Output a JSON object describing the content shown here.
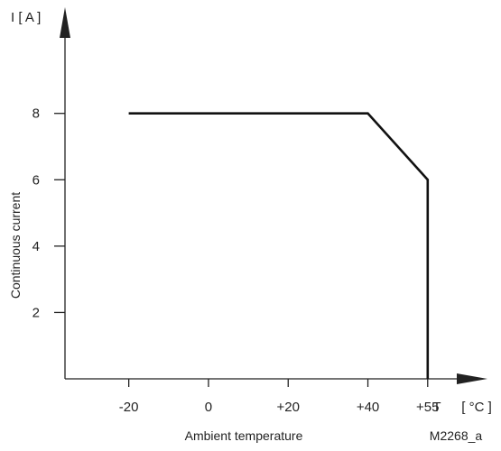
{
  "chart_data": {
    "type": "line",
    "title": "",
    "xlabel": "Ambient temperature",
    "ylabel": "Continuous current",
    "x_unit_symbol": "T",
    "x_unit": "[ °C ]",
    "y_unit": "I [ A ]",
    "figure_code": "M2268_a",
    "xlim": [
      -36,
      70
    ],
    "ylim": [
      0,
      11.2
    ],
    "x_ticks": [
      {
        "value": -20,
        "label": "-20"
      },
      {
        "value": 0,
        "label": "0"
      },
      {
        "value": 20,
        "label": "+20"
      },
      {
        "value": 40,
        "label": "+40"
      },
      {
        "value": 55,
        "label": "+55"
      }
    ],
    "y_ticks": [
      {
        "value": 2,
        "label": "2"
      },
      {
        "value": 4,
        "label": "4"
      },
      {
        "value": 6,
        "label": "6"
      },
      {
        "value": 8,
        "label": "8"
      }
    ],
    "grid": false,
    "series": [
      {
        "x": [
          -20,
          40,
          55,
          55
        ],
        "y": [
          8,
          8,
          6,
          0
        ]
      }
    ]
  }
}
